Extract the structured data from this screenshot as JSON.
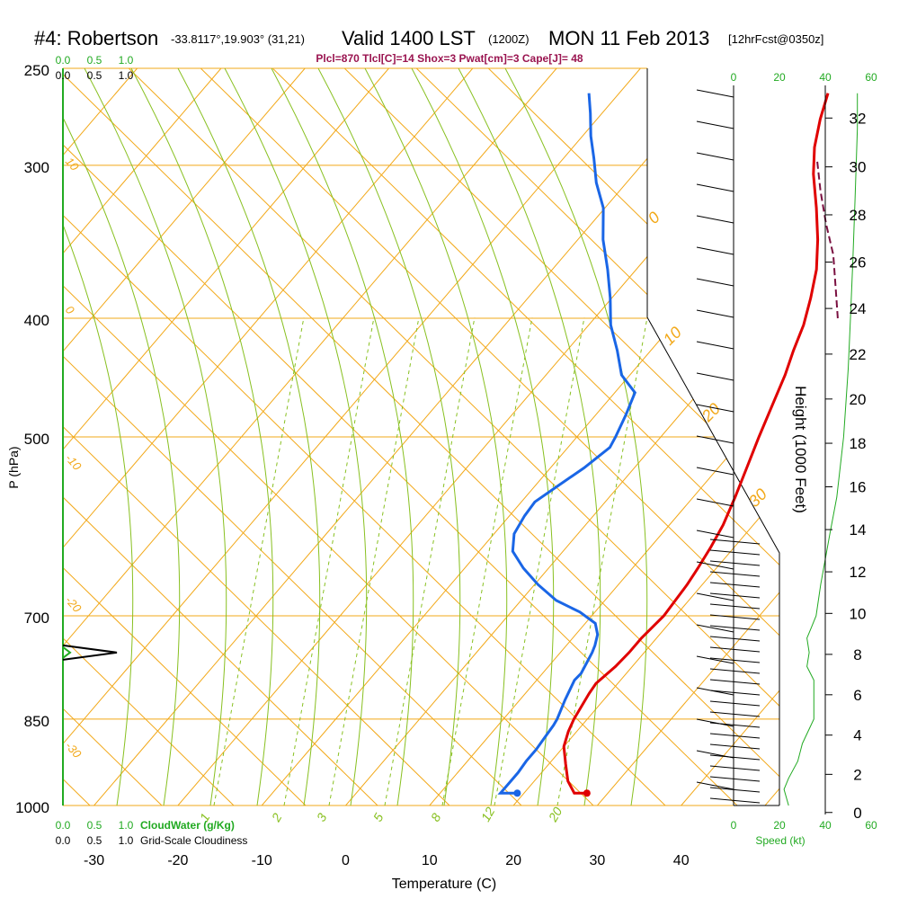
{
  "title": {
    "station": "#4: Robertson",
    "coords": "-33.8117°,19.903° (31,21)",
    "valid": "Valid 1400 LST",
    "zulu": "(1200Z)",
    "date": "MON 11 Feb 2013",
    "forecast": "[12hrFcst@0350z]"
  },
  "params_line": "Plcl=870 Tlcl[C]=14 Shox=3 Pwat[cm]=3 Cape[J]= 48",
  "colors": {
    "isotherm": "#f2a818",
    "dry_adiabat": "#f2a818",
    "moist_adiabat": "#88c020",
    "mixing_ratio": "#88c020",
    "temperature": "#e00000",
    "dewpoint": "#1a66e6",
    "parcel": "#7a1040",
    "cloud": "#22aa22",
    "wind": "#000000"
  },
  "chart_data": {
    "type": "line",
    "chart_kind": "skew-T log-P sounding",
    "xlabel": "Temperature (C)",
    "ylabel": "P (hPa)",
    "y2label": "Height (1000 Feet)",
    "xlim": [
      -35,
      38
    ],
    "ylim": [
      1000,
      250
    ],
    "yscale": "log",
    "x_ticks": [
      -30,
      -20,
      -10,
      0,
      10,
      20,
      30,
      40
    ],
    "y_ticks": [
      250,
      300,
      400,
      500,
      700,
      850,
      1000
    ],
    "height_ticks": [
      0,
      2,
      4,
      6,
      8,
      10,
      12,
      14,
      16,
      18,
      20,
      22,
      24,
      26,
      28,
      30,
      32
    ],
    "height_levels_hpa": [
      1013.2,
      943.1,
      876.0,
      812.0,
      752.6,
      696.8,
      644.4,
      595.2,
      549.2,
      506.0,
      465.6,
      427.9,
      392.7,
      359.9,
      329.3,
      300.9,
      274.5
    ],
    "isotherm_labels": [
      "10",
      "0",
      "-10",
      "-20",
      "-30"
    ],
    "dry_adiabat_labels": [
      "0",
      "10",
      "20",
      "30"
    ],
    "mixing_ratio_labels": [
      "1",
      "2",
      "3",
      "5",
      "8",
      "12",
      "20"
    ],
    "mixing_ratio_values": [
      1,
      2,
      3,
      5,
      8,
      12,
      20
    ],
    "series": [
      {
        "name": "Temperature",
        "points": [
          [
            27.5,
            977
          ],
          [
            26,
            977
          ],
          [
            24,
            955
          ],
          [
            22,
            925
          ],
          [
            20,
            895
          ],
          [
            19,
            870
          ],
          [
            18.4,
            850
          ],
          [
            17.6,
            810
          ],
          [
            17.4,
            795
          ],
          [
            18,
            770
          ],
          [
            18.2,
            750
          ],
          [
            18.2,
            730
          ],
          [
            18.6,
            700
          ],
          [
            18.4,
            680
          ],
          [
            18.2,
            660
          ],
          [
            17.8,
            640
          ],
          [
            17.2,
            615
          ],
          [
            16.4,
            590
          ],
          [
            15,
            560
          ],
          [
            13.4,
            530
          ],
          [
            11.7,
            500
          ],
          [
            10,
            470
          ],
          [
            8.5,
            445
          ],
          [
            7,
            425
          ],
          [
            5.6,
            405
          ],
          [
            3.7,
            385
          ],
          [
            1.5,
            365
          ],
          [
            -1.4,
            345
          ],
          [
            -4.8,
            325
          ],
          [
            -8.6,
            305
          ],
          [
            -11.2,
            290
          ],
          [
            -13.4,
            275
          ],
          [
            -15.1,
            262
          ]
        ]
      },
      {
        "name": "Dewpoint",
        "points": [
          [
            19.2,
            977
          ],
          [
            17.2,
            977
          ],
          [
            17.2,
            960
          ],
          [
            17.2,
            940
          ],
          [
            17.0,
            920
          ],
          [
            17.0,
            900
          ],
          [
            16.8,
            880
          ],
          [
            16.6,
            860
          ],
          [
            16.4,
            850
          ],
          [
            15.4,
            820
          ],
          [
            14.5,
            790
          ],
          [
            14.6,
            780
          ],
          [
            14.2,
            765
          ],
          [
            13.8,
            750
          ],
          [
            13.4,
            740
          ],
          [
            12.6,
            725
          ],
          [
            11.2,
            710
          ],
          [
            8.2,
            695
          ],
          [
            4.2,
            680
          ],
          [
            0.4,
            660
          ],
          [
            -3.0,
            640
          ],
          [
            -6.0,
            620
          ],
          [
            -7.6,
            600
          ],
          [
            -8.2,
            580
          ],
          [
            -8.4,
            565
          ],
          [
            -7.4,
            550
          ],
          [
            -6,
            530
          ],
          [
            -5,
            510
          ],
          [
            -5.4,
            500
          ],
          [
            -6.4,
            480
          ],
          [
            -7.6,
            460
          ],
          [
            -11,
            445
          ],
          [
            -14,
            425
          ],
          [
            -17.4,
            405
          ],
          [
            -20.2,
            385
          ],
          [
            -23.4,
            365
          ],
          [
            -27,
            345
          ],
          [
            -30.2,
            325
          ],
          [
            -33.6,
            310
          ],
          [
            -36.4,
            296
          ],
          [
            -39,
            284
          ],
          [
            -41.4,
            272
          ],
          [
            -43.6,
            262
          ]
        ]
      },
      {
        "name": "Parcel",
        "points": [
          [
            9,
            400
          ],
          [
            6,
            380
          ],
          [
            2,
            355
          ],
          [
            -2,
            335
          ],
          [
            -6,
            315
          ],
          [
            -9.4,
            298
          ]
        ]
      }
    ],
    "surface_temp": 27.5,
    "surface_dewpoint": 19.2,
    "cloud_water_axis": {
      "label": "CloudWater (g/Kg)",
      "ticks": [
        "0.0",
        "0.5",
        "1.0"
      ]
    },
    "cloudiness_axis": {
      "label": "Grid-Scale Cloudiness",
      "ticks": [
        "0.0",
        "0.5",
        "1.0"
      ]
    },
    "cloudiness_peak": {
      "pressure": 750,
      "value": 0.6
    },
    "speed_axis": {
      "label": "Speed (kt)",
      "ticks": [
        "0",
        "20",
        "40",
        "60"
      ]
    },
    "wind_speed_profile": [
      [
        1000,
        24
      ],
      [
        970,
        22
      ],
      [
        950,
        24
      ],
      [
        920,
        28
      ],
      [
        890,
        30
      ],
      [
        850,
        35
      ],
      [
        820,
        35
      ],
      [
        790,
        35
      ],
      [
        770,
        32
      ],
      [
        750,
        33
      ],
      [
        730,
        32
      ],
      [
        715,
        34
      ],
      [
        700,
        36
      ],
      [
        660,
        38
      ],
      [
        600,
        42
      ],
      [
        560,
        45
      ],
      [
        500,
        48
      ],
      [
        440,
        50
      ],
      [
        400,
        51
      ],
      [
        360,
        52
      ],
      [
        320,
        53
      ],
      [
        280,
        54
      ],
      [
        262,
        54
      ]
    ]
  }
}
